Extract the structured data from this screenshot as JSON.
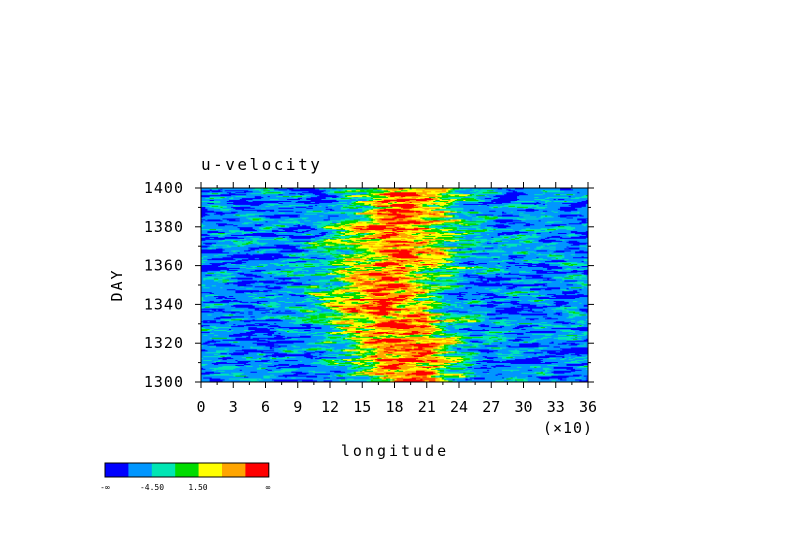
{
  "chart_data": {
    "type": "heatmap",
    "title": "u-velocity",
    "xlabel": "longitude",
    "ylabel": "DAY",
    "x_multiplier": "(×10)",
    "xlim": [
      0,
      36
    ],
    "ylim": [
      1300,
      1400
    ],
    "x_ticks": [
      "0",
      "3",
      "6",
      "9",
      "12",
      "15",
      "18",
      "21",
      "24",
      "27",
      "30",
      "33",
      "36"
    ],
    "y_ticks": [
      "1300",
      "1320",
      "1340",
      "1360",
      "1380",
      "1400"
    ],
    "colorbar": {
      "colors": [
        "#0000ff",
        "#0096ff",
        "#00e6b4",
        "#00dc00",
        "#ffff00",
        "#ffa500",
        "#ff0000"
      ],
      "labels": [
        "-∞",
        "-4.50",
        "1.50",
        "∞"
      ]
    },
    "bands": [
      {
        "day": 1300,
        "center_lon": 19.5,
        "width": 3.0
      },
      {
        "day": 1320,
        "center_lon": 18.5,
        "width": 4.0
      },
      {
        "day": 1330,
        "center_lon": 18.0,
        "width": 4.0
      },
      {
        "day": 1340,
        "center_lon": 16.5,
        "width": 4.0
      },
      {
        "day": 1350,
        "center_lon": 17.0,
        "width": 3.5
      },
      {
        "day": 1360,
        "center_lon": 18.0,
        "width": 4.0
      },
      {
        "day": 1370,
        "center_lon": 18.0,
        "width": 4.0
      },
      {
        "day": 1380,
        "center_lon": 18.0,
        "width": 4.0
      },
      {
        "day": 1390,
        "center_lon": 19.0,
        "width": 3.5
      },
      {
        "day": 1400,
        "center_lon": 19.0,
        "width": 3.5
      }
    ],
    "levels": [
      -1.0,
      -0.45,
      -0.15,
      0.15,
      0.45,
      0.8
    ],
    "grid": false
  }
}
